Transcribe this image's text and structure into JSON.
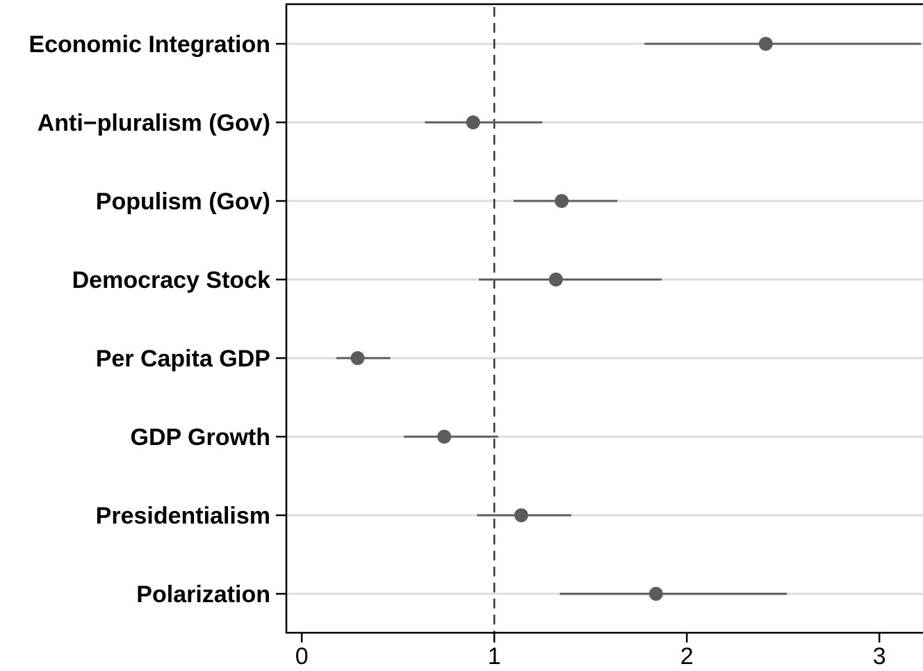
{
  "chart_data": {
    "type": "scatter",
    "title": "",
    "xlabel": "",
    "ylabel": "",
    "xlim": [
      -0.08,
      3.27
    ],
    "xticks": [
      0,
      1,
      2,
      3
    ],
    "reference_line": 1,
    "grid": "horizontal",
    "categories": [
      "Economic Integration",
      "Anti−pluralism (Gov)",
      "Populism (Gov)",
      "Democracy Stock",
      "Per Capita GDP",
      "GDP Growth",
      "Presidentialism",
      "Polarization"
    ],
    "estimates": [
      2.41,
      0.89,
      1.35,
      1.32,
      0.29,
      0.74,
      1.14,
      1.84
    ],
    "ci_low": [
      1.78,
      0.64,
      1.1,
      0.92,
      0.18,
      0.53,
      0.91,
      1.34
    ],
    "ci_high": [
      3.27,
      1.25,
      1.64,
      1.87,
      0.46,
      1.02,
      1.4,
      2.52
    ]
  },
  "colors": {
    "point": "#5c5c5c",
    "grid": "#dcdcdc",
    "reference": "#333333"
  }
}
